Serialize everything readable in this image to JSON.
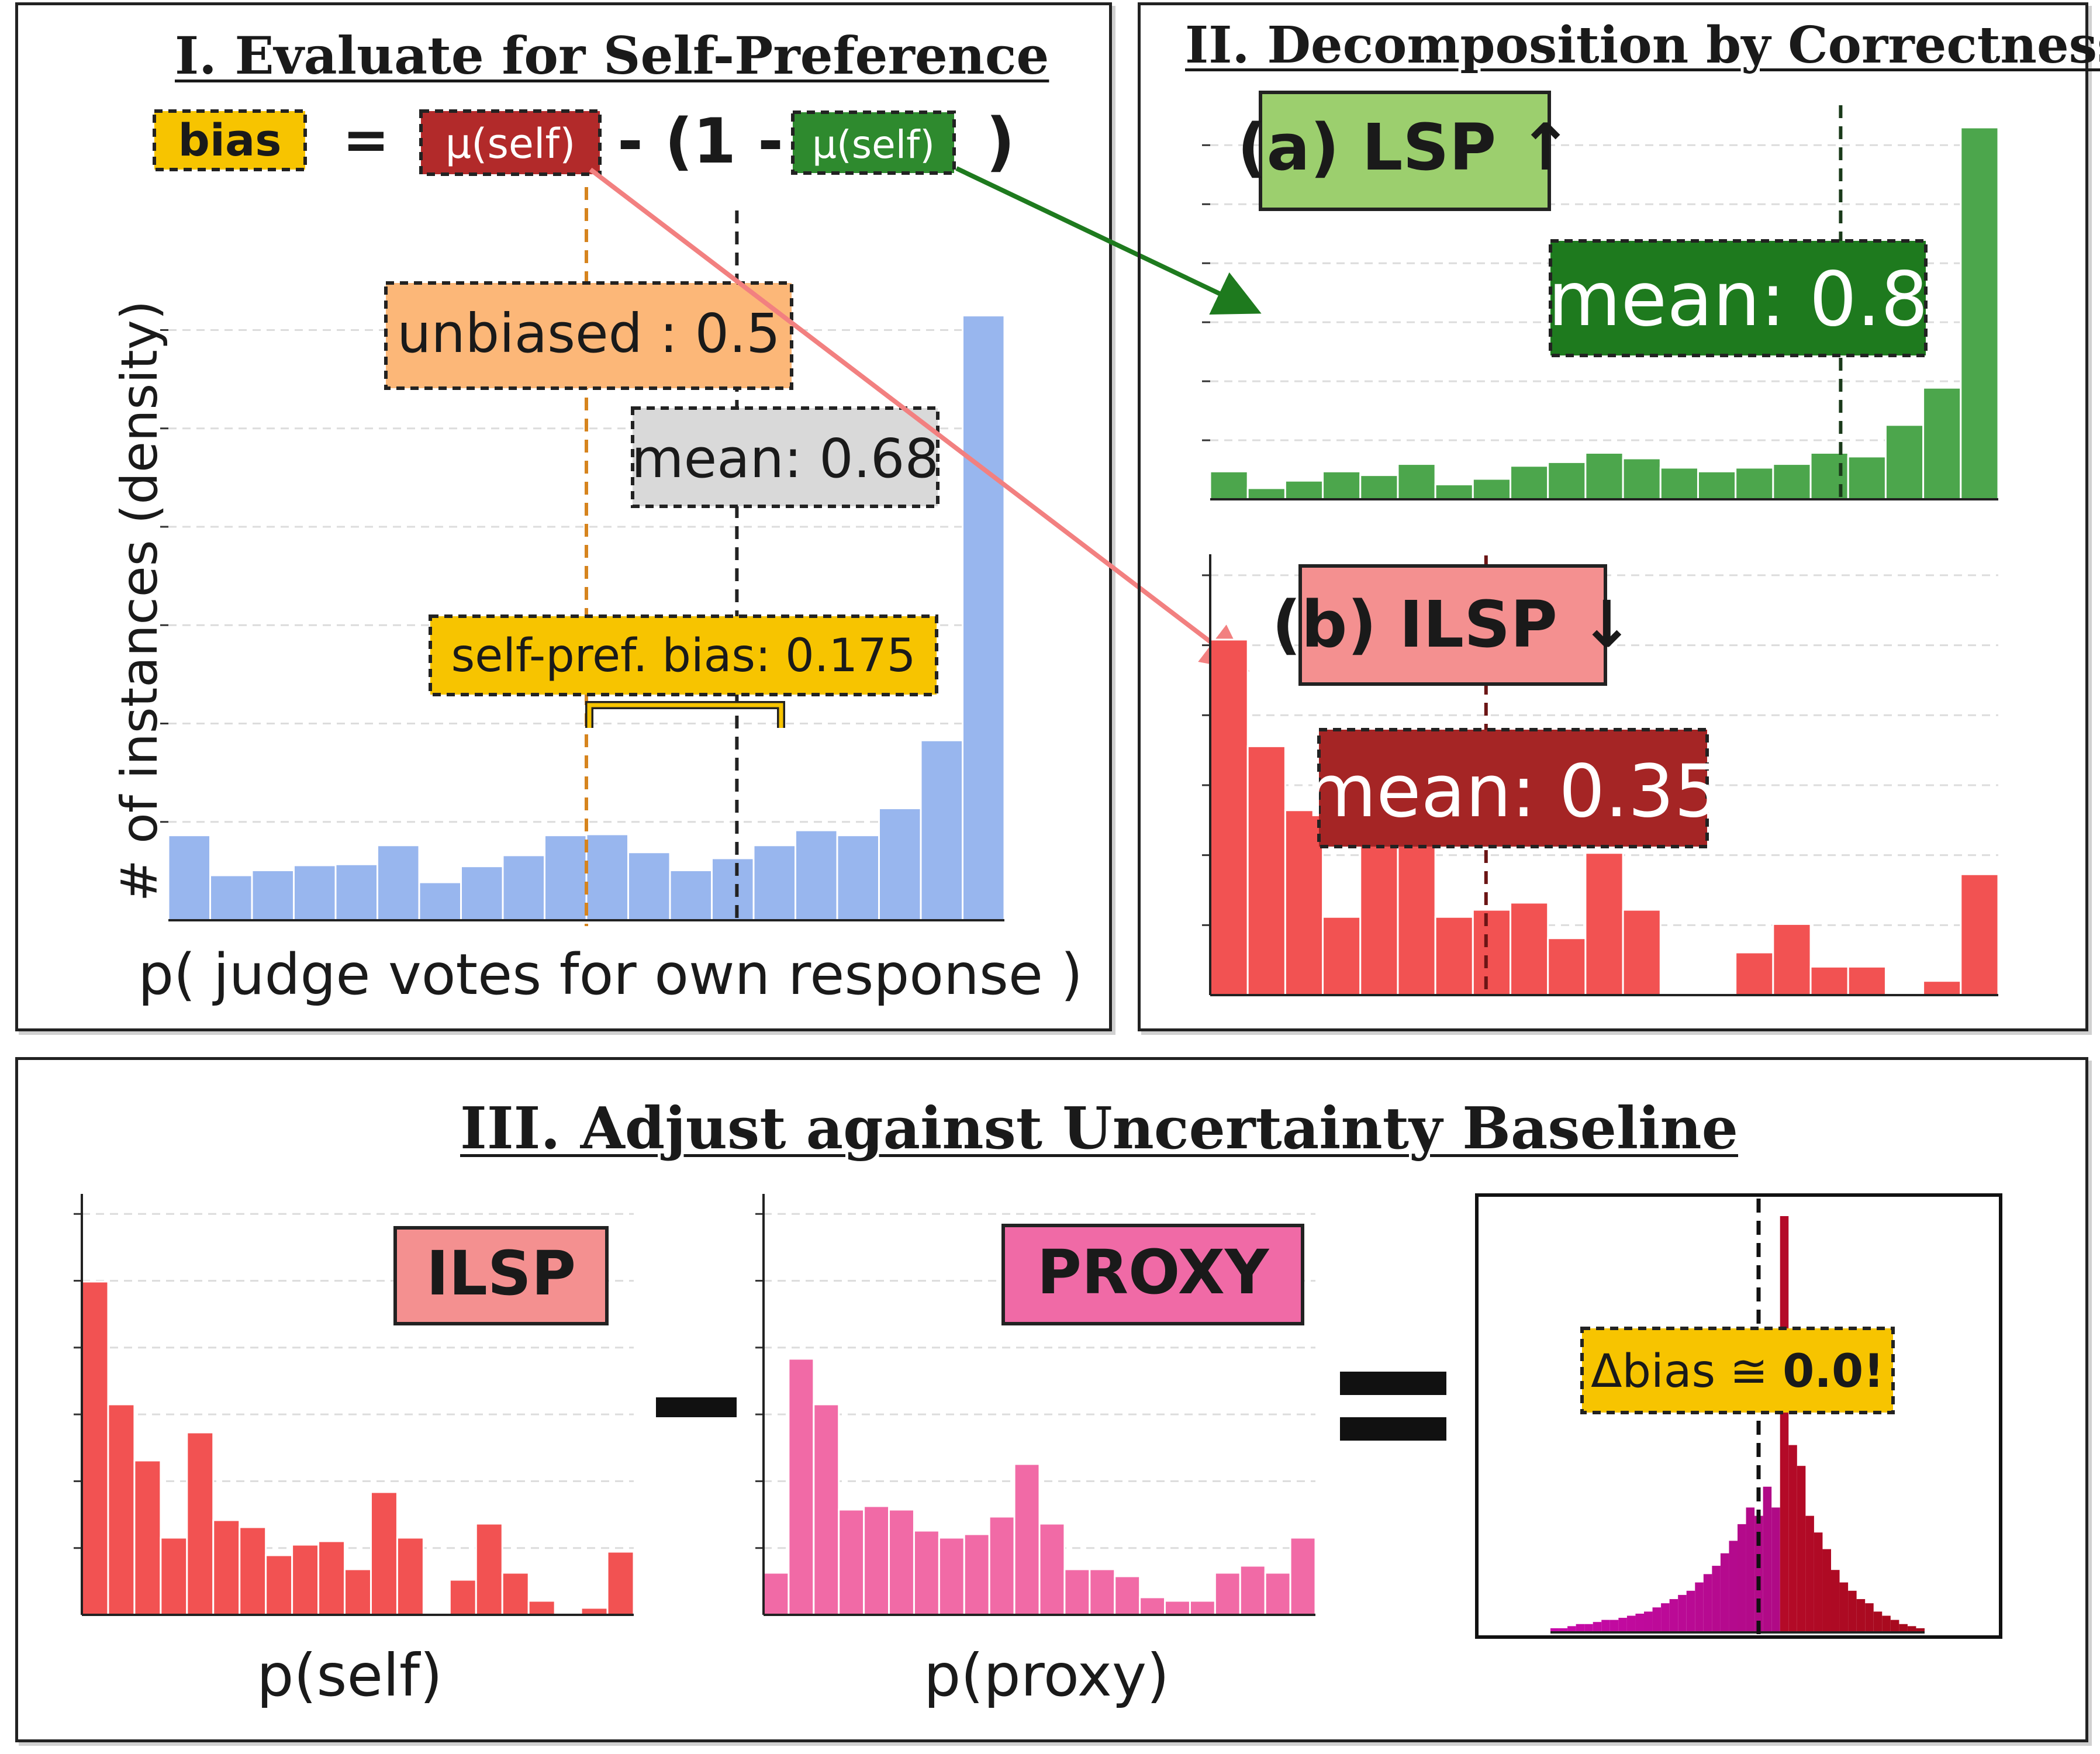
{
  "panel1": {
    "title": "I. Evaluate for Self-Preference",
    "formula": {
      "bias": "bias",
      "equals": "=",
      "mu_self_red": "μ(self)",
      "minus_open": "- (1 -",
      "mu_self_green": "μ(self)",
      "close": ")"
    },
    "ylabel": "# of instances (density)",
    "xlabel": "p( judge votes for own response )",
    "unbiased_label": "unbiased : 0.5",
    "mean_label": "mean: 0.68",
    "bias_label": "self-pref. bias: 0.175",
    "unbiased_value": 0.5,
    "mean_value": 0.68
  },
  "panel2": {
    "title": "II. Decomposition by Correctness",
    "lsp_label": "(a) LSP ↑",
    "lsp_mean_label": "mean: 0.8",
    "lsp_mean_value": 0.8,
    "ilsp_label": "(b) ILSP ↓",
    "ilsp_mean_label": "mean: 0.35",
    "ilsp_mean_value": 0.35
  },
  "panel3": {
    "title": "III. Adjust against Uncertainty Baseline",
    "ilsp_label": "ILSP",
    "proxy_label": "PROXY",
    "minus": "−",
    "equals": "=",
    "xlabel_self": "p(self)",
    "xlabel_proxy": "p(proxy)",
    "delta_prefix": "Δbias ≅ ",
    "delta_value": "0.0!"
  },
  "colors": {
    "blue": "#98b6ee",
    "green": "#4ca64c",
    "red": "#f25252",
    "pink": "#f16aa6",
    "gold": "#f7c400",
    "dark_red": "#b22a2a",
    "dark_green": "#1e7a1e"
  },
  "chart_data": [
    {
      "name": "self-preference distribution",
      "type": "bar",
      "xlabel": "p( judge votes for own response )",
      "ylabel": "# of instances (density)",
      "xlim": [
        0,
        1
      ],
      "values": [
        0.085,
        0.045,
        0.05,
        0.055,
        0.056,
        0.075,
        0.038,
        0.054,
        0.065,
        0.085,
        0.086,
        0.068,
        0.05,
        0.062,
        0.075,
        0.09,
        0.085,
        0.112,
        0.18,
        0.605
      ]
    },
    {
      "name": "LSP distribution",
      "type": "bar",
      "xlim": [
        0,
        1
      ],
      "values": [
        0.075,
        0.03,
        0.05,
        0.075,
        0.065,
        0.095,
        0.04,
        0.055,
        0.09,
        0.1,
        0.125,
        0.11,
        0.085,
        0.075,
        0.085,
        0.095,
        0.125,
        0.115,
        0.2,
        0.3,
        1.0
      ]
    },
    {
      "name": "ILSP distribution",
      "type": "bar",
      "xlim": [
        0,
        1
      ],
      "values": [
        0.5,
        0.35,
        0.26,
        0.11,
        0.31,
        0.22,
        0.11,
        0.12,
        0.13,
        0.08,
        0.2,
        0.12,
        0,
        0,
        0.06,
        0.1,
        0.04,
        0.04,
        0,
        0.02,
        0.17
      ]
    },
    {
      "name": "ILSP (panel III)",
      "type": "bar",
      "xlabel": "p(self)",
      "xlim": [
        0,
        1
      ],
      "values": [
        0.95,
        0.6,
        0.44,
        0.22,
        0.52,
        0.27,
        0.25,
        0.17,
        0.2,
        0.21,
        0.13,
        0.35,
        0.22,
        0,
        0.1,
        0.26,
        0.12,
        0.04,
        0,
        0.02,
        0.18
      ]
    },
    {
      "name": "PROXY (panel III)",
      "type": "bar",
      "xlabel": "p(proxy)",
      "xlim": [
        0,
        1
      ],
      "values": [
        0.12,
        0.73,
        0.6,
        0.3,
        0.31,
        0.3,
        0.24,
        0.22,
        0.23,
        0.28,
        0.43,
        0.26,
        0.13,
        0.13,
        0.11,
        0.05,
        0.04,
        0.04,
        0.12,
        0.14,
        0.12,
        0.22
      ]
    },
    {
      "name": "difference distribution",
      "type": "bar",
      "values": [
        0.01,
        0.01,
        0.015,
        0.02,
        0.02,
        0.025,
        0.03,
        0.03,
        0.035,
        0.04,
        0.045,
        0.05,
        0.06,
        0.07,
        0.08,
        0.09,
        0.1,
        0.12,
        0.14,
        0.16,
        0.19,
        0.22,
        0.26,
        0.3,
        0.28,
        0.35,
        0.3,
        1.0,
        0.45,
        0.4,
        0.28,
        0.24,
        0.2,
        0.15,
        0.12,
        0.1,
        0.08,
        0.07,
        0.05,
        0.04,
        0.03,
        0.02,
        0.015,
        0.01
      ],
      "marker": 0.0
    }
  ]
}
